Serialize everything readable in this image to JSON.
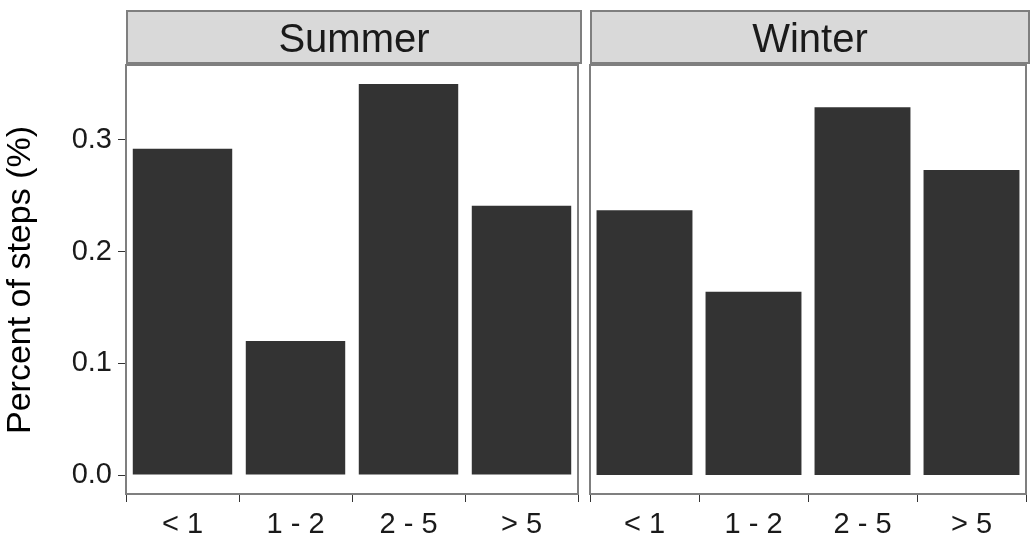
{
  "chart_data": [
    {
      "type": "bar",
      "title": "Summer",
      "ylabel": "Percent of steps (%)",
      "categories": [
        "< 1",
        "1 - 2",
        "2 - 5",
        "> 5"
      ],
      "values": [
        0.292,
        0.12,
        0.35,
        0.241
      ],
      "color": "#333333",
      "ylim": [
        -0.017,
        0.366
      ],
      "yticks": [
        {
          "value": 0,
          "label": "0.0"
        },
        0.1,
        0.2,
        0.3
      ],
      "grid": false,
      "legend": false
    },
    {
      "type": "bar",
      "title": "Winter",
      "categories": [
        "< 1",
        "1 - 2",
        "2 - 5",
        "> 5"
      ],
      "values": [
        0.237,
        0.164,
        0.329,
        0.273
      ],
      "color": "#333333",
      "ylim": [
        -0.017,
        0.366
      ],
      "grid": false,
      "legend": false,
      "tick_labels": "x"
    }
  ]
}
